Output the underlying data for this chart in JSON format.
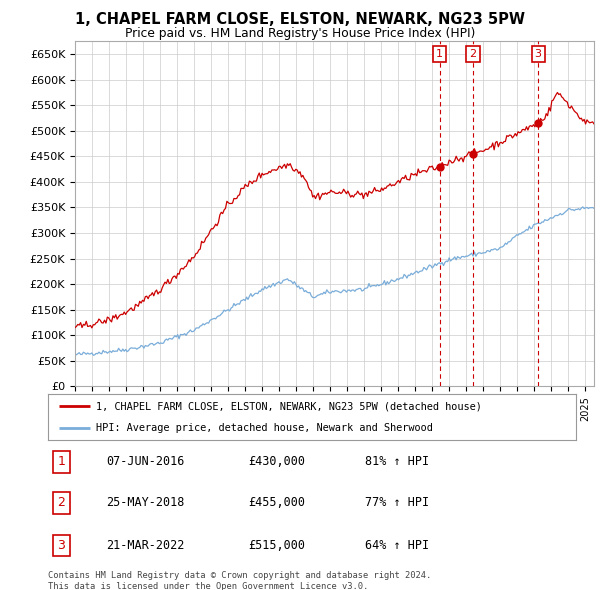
{
  "title": "1, CHAPEL FARM CLOSE, ELSTON, NEWARK, NG23 5PW",
  "subtitle": "Price paid vs. HM Land Registry's House Price Index (HPI)",
  "ylim": [
    0,
    675000
  ],
  "yticks": [
    0,
    50000,
    100000,
    150000,
    200000,
    250000,
    300000,
    350000,
    400000,
    450000,
    500000,
    550000,
    600000,
    650000
  ],
  "ytick_labels": [
    "£0",
    "£50K",
    "£100K",
    "£150K",
    "£200K",
    "£250K",
    "£300K",
    "£350K",
    "£400K",
    "£450K",
    "£500K",
    "£550K",
    "£600K",
    "£650K"
  ],
  "sale_prices": [
    430000,
    455000,
    515000
  ],
  "sale_labels": [
    "1",
    "2",
    "3"
  ],
  "sale_decimal_years": [
    2016.436,
    2018.397,
    2022.219
  ],
  "sale_info": [
    {
      "label": "1",
      "date": "07-JUN-2016",
      "price": "£430,000",
      "pct": "81% ↑ HPI"
    },
    {
      "label": "2",
      "date": "25-MAY-2018",
      "price": "£455,000",
      "pct": "77% ↑ HPI"
    },
    {
      "label": "3",
      "date": "21-MAR-2022",
      "price": "£515,000",
      "pct": "64% ↑ HPI"
    }
  ],
  "legend_house": "1, CHAPEL FARM CLOSE, ELSTON, NEWARK, NG23 5PW (detached house)",
  "legend_hpi": "HPI: Average price, detached house, Newark and Sherwood",
  "footer1": "Contains HM Land Registry data © Crown copyright and database right 2024.",
  "footer2": "This data is licensed under the Open Government Licence v3.0.",
  "house_color": "#cc0000",
  "hpi_color": "#7aadd9",
  "background_color": "#ffffff",
  "grid_color": "#cccccc",
  "xmin": 1995,
  "xmax": 2025.5
}
